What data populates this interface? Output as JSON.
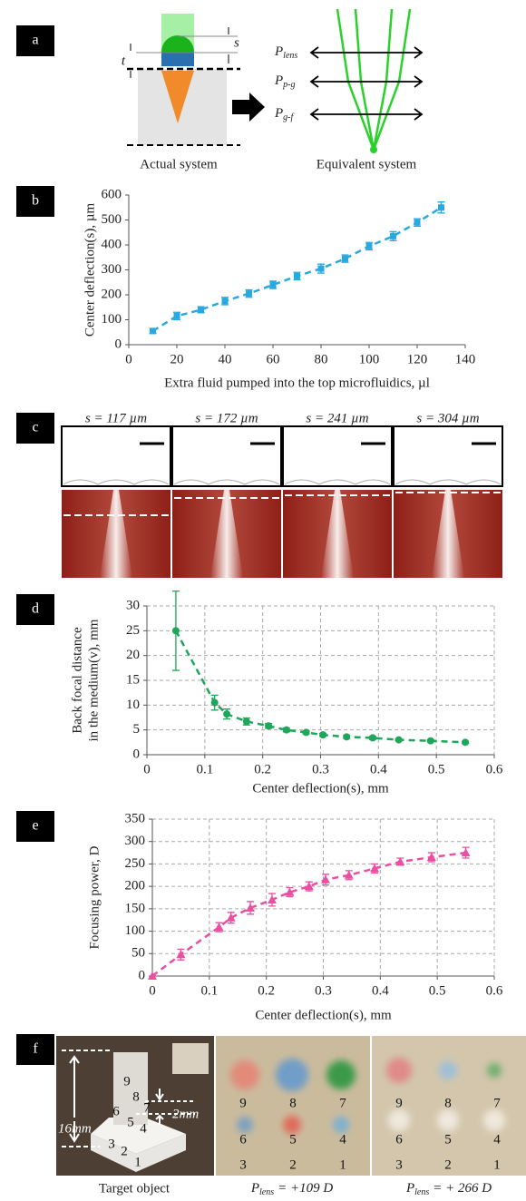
{
  "panels": {
    "labels": [
      "a",
      "b",
      "c",
      "d",
      "e",
      "f"
    ]
  },
  "diagram": {
    "s": "s",
    "t": "t",
    "actual_caption": "Actual system",
    "equivalent_caption": "Equivalent system",
    "powers": [
      {
        "symbol": "P",
        "sub": "lens"
      },
      {
        "symbol": "P",
        "sub": "p-g"
      },
      {
        "symbol": "P",
        "sub": "g-f"
      }
    ]
  },
  "images_c": {
    "captions": [
      "s = 117 µm",
      "s = 172 µm",
      "s = 241 µm",
      "s = 304 µm"
    ]
  },
  "images_f": {
    "dims": [
      "16mm",
      "2mm"
    ],
    "grid_labels": [
      "9",
      "8",
      "7",
      "6",
      "5",
      "4",
      "3",
      "2",
      "1"
    ],
    "captions": [
      {
        "text": "Target object"
      },
      {
        "symbol": "P",
        "sub": "lens",
        "text": "= +109 D"
      },
      {
        "symbol": "P",
        "sub": "lens",
        "text": "= + 266 D"
      }
    ]
  },
  "chart_data": [
    {
      "type": "line",
      "xlabel": "Extra fluid pumped into the top microfluidics, µl",
      "ylabel": [
        "Center deflection(s), µm"
      ],
      "xlim": [
        0,
        140
      ],
      "ylim": [
        0,
        600
      ],
      "xticks": [
        0,
        20,
        40,
        60,
        80,
        100,
        120,
        140
      ],
      "yticks": [
        0,
        100,
        200,
        300,
        400,
        500,
        600
      ],
      "grid": false,
      "line_style": "dashed",
      "marker": "square",
      "series": [
        {
          "color": "#29a9e1",
          "x": [
            10,
            20,
            30,
            40,
            50,
            60,
            70,
            80,
            90,
            100,
            110,
            120,
            130
          ],
          "values": [
            55,
            115,
            140,
            175,
            205,
            240,
            275,
            305,
            345,
            395,
            435,
            490,
            550
          ],
          "errors": [
            10,
            15,
            12,
            15,
            15,
            15,
            15,
            18,
            15,
            15,
            18,
            15,
            22
          ]
        }
      ]
    },
    {
      "type": "line",
      "xlabel": "Center deflection(s), mm",
      "ylabel": [
        "Back focal distance",
        "in the medium(v), mm"
      ],
      "xlim": [
        0,
        0.6
      ],
      "ylim": [
        0,
        30
      ],
      "xticks": [
        0,
        0.1,
        0.2,
        0.3,
        0.4,
        0.5,
        0.6
      ],
      "yticks": [
        0,
        5,
        10,
        15,
        20,
        25,
        30
      ],
      "grid": true,
      "line_style": "dashed",
      "marker": "circle",
      "series": [
        {
          "color": "#1ea65a",
          "x": [
            0.05,
            0.117,
            0.138,
            0.172,
            0.21,
            0.241,
            0.275,
            0.304,
            0.345,
            0.39,
            0.435,
            0.49,
            0.55
          ],
          "values": [
            25,
            10.5,
            8.2,
            6.7,
            5.8,
            5.0,
            4.5,
            4.0,
            3.6,
            3.4,
            3.0,
            2.8,
            2.5
          ],
          "errors": [
            8,
            1.5,
            1,
            0.7,
            0.5,
            0.4,
            0.3,
            0.3,
            0.3,
            0.3,
            0.2,
            0.2,
            0.2
          ]
        }
      ]
    },
    {
      "type": "line",
      "xlabel": "Center deflection(s), mm",
      "ylabel": [
        "Focusing power, D"
      ],
      "xlim": [
        0,
        0.6
      ],
      "ylim": [
        0,
        350
      ],
      "xticks": [
        0,
        0.1,
        0.2,
        0.3,
        0.4,
        0.5,
        0.6
      ],
      "yticks": [
        0,
        50,
        100,
        150,
        200,
        250,
        300,
        350
      ],
      "grid": true,
      "line_style": "dashed",
      "marker": "triangle",
      "series": [
        {
          "color": "#ec4ea1",
          "x": [
            0,
            0.05,
            0.117,
            0.138,
            0.172,
            0.21,
            0.241,
            0.275,
            0.304,
            0.345,
            0.39,
            0.435,
            0.49,
            0.55
          ],
          "values": [
            0,
            48,
            109,
            130,
            152,
            170,
            187,
            200,
            215,
            225,
            240,
            255,
            265,
            275
          ],
          "errors": [
            null,
            12,
            10,
            12,
            14,
            14,
            10,
            10,
            12,
            10,
            10,
            8,
            10,
            12
          ]
        }
      ]
    }
  ]
}
